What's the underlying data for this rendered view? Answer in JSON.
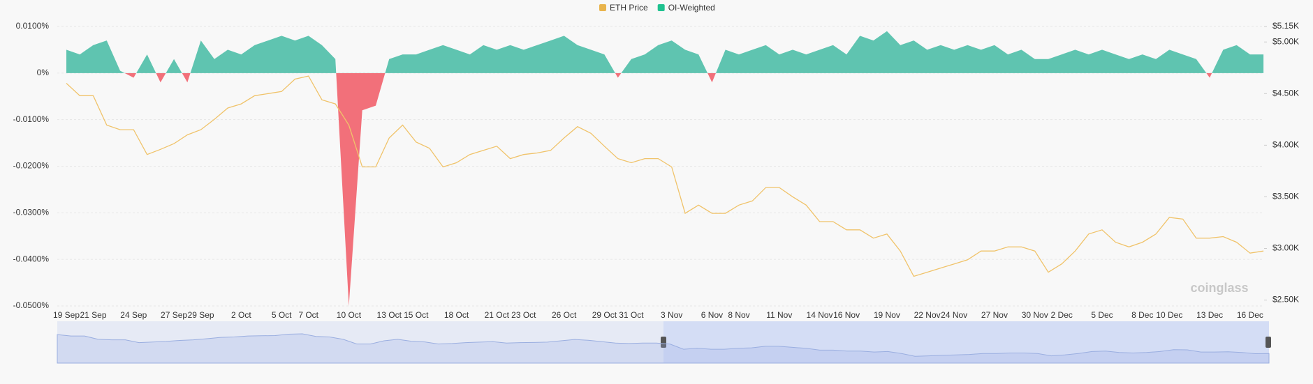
{
  "chart_data": {
    "type": "area_line",
    "categories": [
      "19 Sep",
      null,
      "21 Sep",
      null,
      null,
      "24 Sep",
      null,
      null,
      "27 Sep",
      null,
      "29 Sep",
      null,
      null,
      "2 Oct",
      null,
      null,
      "5 Oct",
      null,
      "7 Oct",
      null,
      null,
      "10 Oct",
      null,
      null,
      "13 Oct",
      null,
      "15 Oct",
      null,
      null,
      "18 Oct",
      null,
      null,
      "21 Oct",
      null,
      "23 Oct",
      null,
      null,
      "26 Oct",
      null,
      null,
      "29 Oct",
      null,
      "31 Oct",
      null,
      null,
      "3 Nov",
      null,
      null,
      "6 Nov",
      null,
      "8 Nov",
      null,
      null,
      "11 Nov",
      null,
      null,
      "14 Nov",
      null,
      "16 Nov",
      null,
      null,
      "19 Nov",
      null,
      null,
      "22 Nov",
      null,
      "24 Nov",
      null,
      null,
      "27 Nov",
      null,
      null,
      "30 Nov",
      null,
      "2 Dec",
      null,
      null,
      "5 Dec",
      null,
      null,
      "8 Dec",
      null,
      "10 Dec",
      null,
      null,
      "13 Dec",
      null,
      null,
      "16 Dec",
      null
    ],
    "series": [
      {
        "name": "OI-Weighted",
        "color": "#5fc4b0",
        "legend_color": "#1fc28f",
        "negative_color": "#f2707a",
        "axis": "y",
        "values": [
          0.005,
          0.004,
          0.006,
          0.007,
          0.0005,
          -0.001,
          0.004,
          -0.002,
          0.003,
          -0.002,
          0.007,
          0.003,
          0.005,
          0.004,
          0.006,
          0.007,
          0.008,
          0.007,
          0.008,
          0.006,
          0.003,
          -0.05,
          -0.008,
          -0.007,
          0.003,
          0.004,
          0.004,
          0.005,
          0.006,
          0.005,
          0.004,
          0.006,
          0.005,
          0.006,
          0.005,
          0.006,
          0.007,
          0.008,
          0.006,
          0.005,
          0.004,
          -0.001,
          0.003,
          0.004,
          0.006,
          0.007,
          0.005,
          0.004,
          -0.002,
          0.005,
          0.004,
          0.005,
          0.006,
          0.004,
          0.005,
          0.004,
          0.005,
          0.006,
          0.004,
          0.008,
          0.007,
          0.009,
          0.006,
          0.007,
          0.005,
          0.006,
          0.005,
          0.006,
          0.005,
          0.006,
          0.004,
          0.005,
          0.003,
          0.003,
          0.004,
          0.005,
          0.004,
          0.005,
          0.004,
          0.003,
          0.004,
          0.003,
          0.005,
          0.004,
          0.003,
          -0.001,
          0.005,
          0.006,
          0.004,
          0.004
        ]
      },
      {
        "name": "ETH Price",
        "color": "#f0c36a",
        "legend_color": "#e9b44c",
        "axis": "y2",
        "values": [
          4600,
          4480,
          4480,
          4195,
          4150,
          4150,
          3910,
          3960,
          4015,
          4100,
          4150,
          4250,
          4360,
          4400,
          4480,
          4500,
          4520,
          4640,
          4670,
          4440,
          4400,
          4195,
          3790,
          3790,
          4070,
          4195,
          4030,
          3970,
          3790,
          3830,
          3910,
          3950,
          3990,
          3870,
          3910,
          3925,
          3950,
          4070,
          4180,
          4115,
          3990,
          3870,
          3830,
          3870,
          3870,
          3790,
          3340,
          3420,
          3340,
          3340,
          3420,
          3460,
          3590,
          3590,
          3500,
          3420,
          3260,
          3260,
          3180,
          3180,
          3100,
          3140,
          2975,
          2730,
          2770,
          2810,
          2850,
          2890,
          2975,
          2975,
          3015,
          3015,
          2975,
          2770,
          2850,
          2975,
          3140,
          3180,
          3060,
          3015,
          3060,
          3140,
          3300,
          3285,
          3100,
          3100,
          3115,
          3060,
          2955,
          2975
        ]
      }
    ],
    "ylim": [
      -0.05,
      0.01
    ],
    "yticks": [
      {
        "value": 0.01,
        "label": "0.0100%"
      },
      {
        "value": 0,
        "label": "0%"
      },
      {
        "value": -0.01,
        "label": "-0.0100%"
      },
      {
        "value": -0.02,
        "label": "-0.0200%"
      },
      {
        "value": -0.03,
        "label": "-0.0300%"
      },
      {
        "value": -0.04,
        "label": "-0.0400%"
      },
      {
        "value": -0.05,
        "label": "-0.0500%"
      }
    ],
    "y2lim": [
      2443,
      5150
    ],
    "y2ticks": [
      {
        "value": 5150,
        "label": "$5.15K"
      },
      {
        "value": 5000,
        "label": "$5.00K"
      },
      {
        "value": 4500,
        "label": "$4.50K"
      },
      {
        "value": 4000,
        "label": "$4.00K"
      },
      {
        "value": 3500,
        "label": "$3.50K"
      },
      {
        "value": 3000,
        "label": "$3.00K"
      },
      {
        "value": 2500,
        "label": "$2.50K"
      }
    ],
    "grid": true,
    "legend": "top",
    "watermark": "coinglass"
  }
}
